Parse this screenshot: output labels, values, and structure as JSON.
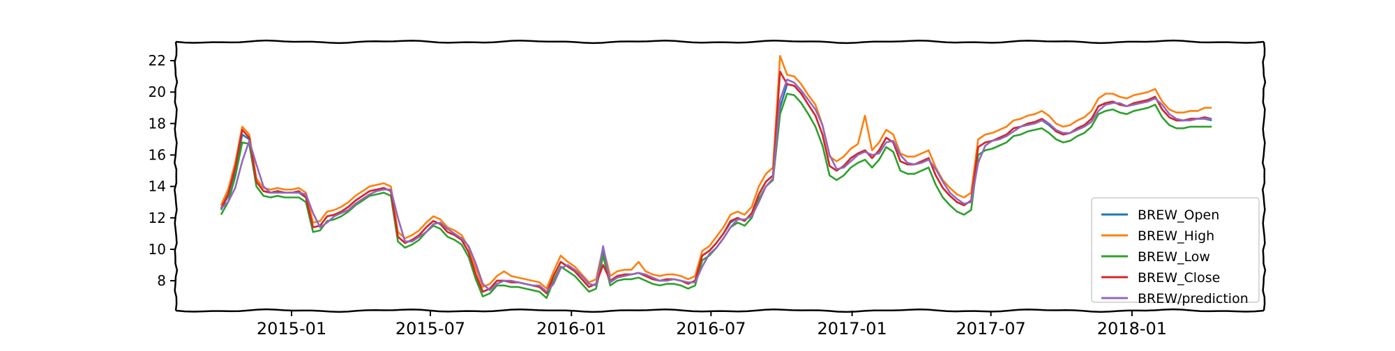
{
  "chart_data": {
    "type": "line",
    "title": "",
    "xlabel": "",
    "ylabel": "",
    "x_tick_labels": [
      "2015-01",
      "2015-07",
      "2016-01",
      "2016-07",
      "2017-01",
      "2017-07",
      "2018-01"
    ],
    "x_tick_dates": [
      "2015-01-01",
      "2015-07-01",
      "2016-01-01",
      "2016-07-01",
      "2017-01-01",
      "2017-07-01",
      "2018-01-01"
    ],
    "xlim": [
      "2014-08-03",
      "2018-06-22"
    ],
    "y_ticks": [
      8,
      10,
      12,
      14,
      16,
      18,
      20,
      22
    ],
    "ylim": [
      6.1,
      23.2
    ],
    "legend_position": "lower right",
    "grid": false,
    "series": [
      {
        "name": "BREW_Open",
        "color": "#1f77b4",
        "values": [
          12.5,
          13.4,
          15.0,
          17.3,
          17.0,
          14.3,
          13.7,
          13.6,
          13.7,
          13.6,
          13.6,
          13.6,
          13.3,
          11.4,
          11.5,
          12.1,
          12.2,
          12.4,
          12.7,
          13.1,
          13.4,
          13.7,
          13.8,
          13.9,
          13.7,
          10.8,
          10.4,
          10.6,
          10.9,
          11.4,
          11.8,
          11.6,
          11.1,
          10.9,
          10.6,
          9.8,
          8.4,
          7.3,
          7.5,
          8.0,
          8.0,
          7.9,
          7.9,
          7.8,
          7.7,
          7.6,
          7.2,
          8.3,
          9.2,
          8.9,
          8.6,
          8.1,
          7.6,
          7.8,
          9.9,
          8.0,
          8.3,
          8.4,
          8.4,
          8.5,
          8.3,
          8.1,
          8.0,
          8.1,
          8.1,
          8.0,
          7.8,
          8.0,
          9.6,
          9.9,
          10.4,
          11.0,
          11.7,
          12.0,
          11.8,
          12.3,
          13.5,
          14.3,
          14.7,
          19.0,
          20.5,
          20.4,
          19.9,
          19.2,
          18.5,
          17.3,
          15.3,
          15.0,
          15.3,
          15.8,
          16.1,
          16.3,
          15.8,
          16.3,
          17.1,
          16.8,
          15.6,
          15.4,
          15.4,
          15.6,
          15.8,
          14.7,
          13.9,
          13.4,
          13.0,
          12.8,
          13.1,
          16.5,
          16.8,
          16.9,
          17.1,
          17.3,
          17.7,
          17.8,
          18.0,
          18.1,
          18.2,
          17.9,
          17.5,
          17.3,
          17.4,
          17.7,
          17.9,
          18.3,
          19.1,
          19.3,
          19.4,
          19.2,
          19.1,
          19.3,
          19.4,
          19.5,
          19.7,
          18.9,
          18.4,
          18.2,
          18.2,
          18.3,
          18.3,
          18.3,
          18.2
        ]
      },
      {
        "name": "BREW_High",
        "color": "#ff7f0e",
        "values": [
          12.8,
          13.8,
          15.5,
          17.8,
          17.3,
          14.5,
          13.9,
          13.8,
          13.9,
          13.8,
          13.8,
          13.9,
          13.6,
          11.7,
          11.8,
          12.4,
          12.5,
          12.7,
          13.0,
          13.4,
          13.7,
          14.0,
          14.1,
          14.2,
          14.0,
          11.1,
          10.7,
          10.9,
          11.2,
          11.7,
          12.1,
          11.9,
          11.4,
          11.2,
          10.9,
          10.1,
          8.8,
          7.6,
          7.8,
          8.3,
          8.6,
          8.3,
          8.2,
          8.1,
          8.0,
          7.9,
          7.5,
          8.6,
          9.6,
          9.2,
          8.9,
          8.4,
          7.9,
          8.1,
          10.1,
          8.3,
          8.6,
          8.7,
          8.7,
          9.2,
          8.6,
          8.4,
          8.3,
          8.4,
          8.4,
          8.3,
          8.1,
          8.3,
          9.9,
          10.2,
          10.8,
          11.4,
          12.2,
          12.4,
          12.2,
          12.7,
          14.0,
          14.8,
          15.2,
          22.3,
          21.1,
          21.0,
          20.5,
          19.8,
          19.2,
          17.9,
          15.9,
          15.6,
          15.9,
          16.4,
          16.7,
          18.5,
          16.3,
          16.8,
          17.6,
          17.3,
          16.1,
          15.9,
          15.9,
          16.1,
          16.3,
          15.2,
          14.4,
          13.9,
          13.5,
          13.3,
          13.6,
          17.0,
          17.3,
          17.4,
          17.6,
          17.8,
          18.2,
          18.3,
          18.5,
          18.6,
          18.8,
          18.5,
          18.0,
          17.8,
          17.9,
          18.2,
          18.4,
          18.8,
          19.6,
          19.9,
          19.9,
          19.7,
          19.6,
          19.8,
          19.9,
          20.0,
          20.2,
          19.4,
          18.9,
          18.7,
          18.7,
          18.8,
          18.8,
          19.0,
          19.0
        ]
      },
      {
        "name": "BREW_Low",
        "color": "#2ca02c",
        "values": [
          12.2,
          13.0,
          14.6,
          16.8,
          16.7,
          14.0,
          13.4,
          13.3,
          13.4,
          13.3,
          13.3,
          13.3,
          13.0,
          11.1,
          11.2,
          11.8,
          11.9,
          12.1,
          12.4,
          12.8,
          13.1,
          13.4,
          13.5,
          13.6,
          13.4,
          10.5,
          10.1,
          10.3,
          10.6,
          11.1,
          11.5,
          11.3,
          10.8,
          10.6,
          10.3,
          9.5,
          8.1,
          7.0,
          7.2,
          7.7,
          7.7,
          7.6,
          7.6,
          7.5,
          7.4,
          7.3,
          6.9,
          8.0,
          8.9,
          8.6,
          8.3,
          7.8,
          7.3,
          7.5,
          9.6,
          7.7,
          8.0,
          8.1,
          8.1,
          8.2,
          8.0,
          7.8,
          7.7,
          7.8,
          7.8,
          7.7,
          7.5,
          7.7,
          9.3,
          9.6,
          10.1,
          10.7,
          11.4,
          11.7,
          11.5,
          12.0,
          13.2,
          14.0,
          14.4,
          18.6,
          19.9,
          19.8,
          19.3,
          18.6,
          17.8,
          16.6,
          14.7,
          14.4,
          14.7,
          15.2,
          15.5,
          15.7,
          15.2,
          15.7,
          16.5,
          16.2,
          15.0,
          14.8,
          14.8,
          15.0,
          15.2,
          14.1,
          13.3,
          12.8,
          12.4,
          12.2,
          12.5,
          16.0,
          16.3,
          16.4,
          16.6,
          16.8,
          17.2,
          17.3,
          17.5,
          17.6,
          17.7,
          17.4,
          17.0,
          16.8,
          16.9,
          17.2,
          17.4,
          17.8,
          18.6,
          18.8,
          18.9,
          18.7,
          18.6,
          18.8,
          18.9,
          19.0,
          19.2,
          18.4,
          17.9,
          17.7,
          17.7,
          17.8,
          17.8,
          17.8,
          17.8
        ]
      },
      {
        "name": "BREW_Close",
        "color": "#d62728",
        "values": [
          12.6,
          13.5,
          15.2,
          17.6,
          17.1,
          14.3,
          13.7,
          13.6,
          13.7,
          13.6,
          13.6,
          13.7,
          13.3,
          11.4,
          11.5,
          12.1,
          12.2,
          12.4,
          12.7,
          13.1,
          13.4,
          13.7,
          13.8,
          13.9,
          13.7,
          10.8,
          10.4,
          10.6,
          10.9,
          11.4,
          11.8,
          11.6,
          11.1,
          10.9,
          10.6,
          9.8,
          8.4,
          7.3,
          7.5,
          8.0,
          8.0,
          7.9,
          7.9,
          7.8,
          7.7,
          7.6,
          7.2,
          8.3,
          9.2,
          8.9,
          8.6,
          8.1,
          7.6,
          7.8,
          9.0,
          8.0,
          8.3,
          8.4,
          8.4,
          8.5,
          8.3,
          8.1,
          8.0,
          8.1,
          8.1,
          8.0,
          7.8,
          8.0,
          9.6,
          9.9,
          10.4,
          11.0,
          11.8,
          12.0,
          11.8,
          12.3,
          13.5,
          14.3,
          14.7,
          21.3,
          20.5,
          20.4,
          19.9,
          19.2,
          18.5,
          17.3,
          15.3,
          15.0,
          15.3,
          15.8,
          16.1,
          16.3,
          15.8,
          16.3,
          17.1,
          16.8,
          15.6,
          15.4,
          15.4,
          15.6,
          15.8,
          14.7,
          13.9,
          13.4,
          13.0,
          12.8,
          13.1,
          16.5,
          16.8,
          16.9,
          17.1,
          17.3,
          17.7,
          17.8,
          18.0,
          18.1,
          18.3,
          18.0,
          17.5,
          17.3,
          17.4,
          17.7,
          17.9,
          18.3,
          19.1,
          19.3,
          19.4,
          19.2,
          19.1,
          19.3,
          19.4,
          19.5,
          19.7,
          18.9,
          18.4,
          18.2,
          18.2,
          18.3,
          18.3,
          18.4,
          18.3
        ]
      },
      {
        "name": "BREW/prediction",
        "color": "#9467bd",
        "values": [
          12.6,
          13.0,
          13.9,
          15.6,
          16.9,
          15.4,
          14.0,
          13.6,
          13.6,
          13.6,
          13.6,
          13.6,
          13.5,
          12.3,
          11.4,
          11.7,
          12.1,
          12.3,
          12.5,
          12.9,
          13.2,
          13.5,
          13.7,
          13.8,
          13.8,
          12.0,
          10.5,
          10.5,
          10.8,
          11.1,
          11.6,
          11.7,
          11.3,
          11.0,
          10.7,
          10.2,
          9.1,
          7.8,
          7.4,
          7.8,
          8.0,
          8.0,
          7.9,
          7.8,
          7.7,
          7.7,
          7.3,
          7.8,
          8.8,
          9.0,
          8.7,
          8.3,
          7.8,
          7.7,
          10.2,
          7.9,
          8.2,
          8.3,
          8.4,
          8.5,
          8.4,
          8.2,
          8.0,
          8.0,
          8.1,
          8.0,
          7.9,
          7.9,
          8.9,
          9.7,
          10.1,
          10.7,
          11.4,
          11.9,
          11.9,
          12.1,
          13.0,
          14.0,
          14.5,
          19.5,
          20.8,
          20.6,
          20.1,
          19.5,
          18.9,
          17.9,
          16.0,
          15.1,
          15.2,
          15.6,
          16.0,
          16.2,
          16.0,
          16.1,
          16.8,
          16.9,
          16.0,
          15.5,
          15.4,
          15.5,
          15.7,
          15.1,
          14.3,
          13.6,
          13.2,
          12.9,
          13.0,
          15.5,
          16.6,
          16.9,
          17.0,
          17.2,
          17.5,
          17.8,
          17.9,
          18.0,
          18.2,
          18.0,
          17.6,
          17.4,
          17.4,
          17.6,
          17.8,
          18.1,
          18.8,
          19.2,
          19.3,
          19.3,
          19.1,
          19.2,
          19.3,
          19.4,
          19.6,
          19.2,
          18.6,
          18.3,
          18.2,
          18.2,
          18.3,
          18.3,
          18.3
        ]
      }
    ]
  }
}
